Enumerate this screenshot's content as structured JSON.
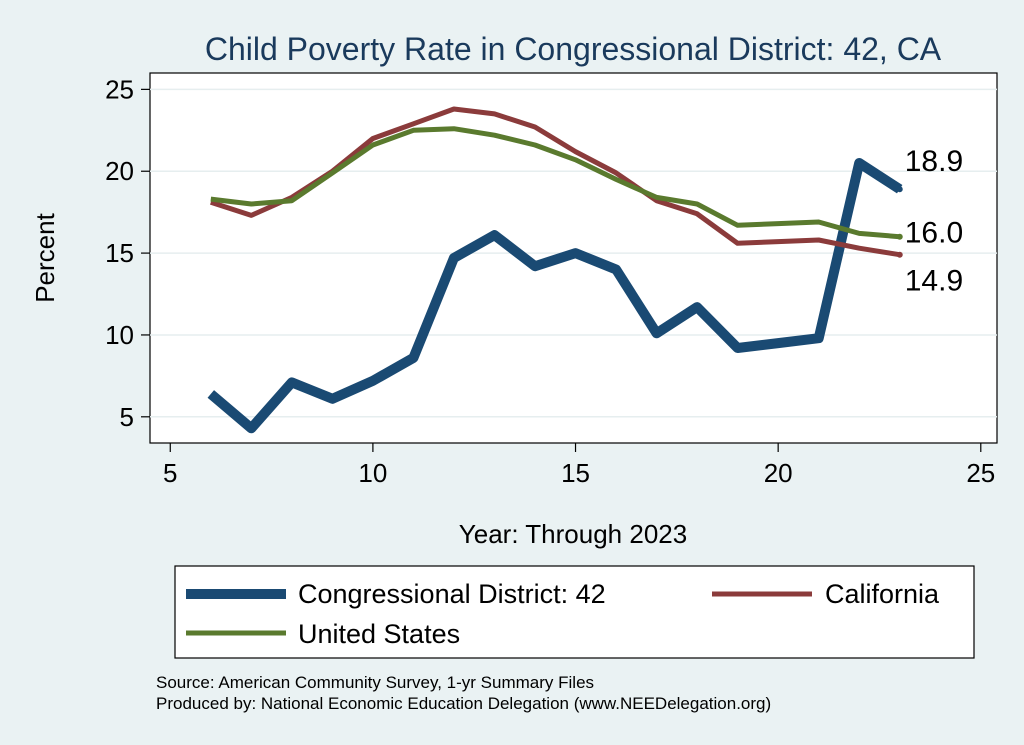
{
  "chart_data": {
    "type": "line",
    "title": "Child Poverty Rate in Congressional District:  42, CA",
    "xlabel": "Year: Through 2023",
    "ylabel": "Percent",
    "xlim": [
      4.5,
      25.4
    ],
    "ylim": [
      3.4,
      26
    ],
    "xticks": [
      5,
      10,
      15,
      20,
      25
    ],
    "yticks": [
      5,
      10,
      15,
      20,
      25
    ],
    "grid": true,
    "legend_position": "bottom",
    "series": [
      {
        "name": "Congressional District:  42",
        "color": "#1a4a73",
        "width": 10,
        "x": [
          6,
          7,
          8,
          9,
          10,
          11,
          12,
          13,
          14,
          15,
          16,
          17,
          18,
          19,
          20,
          21,
          22,
          23
        ],
        "y": [
          6.4,
          4.3,
          7.1,
          6.1,
          7.2,
          8.6,
          14.7,
          16.1,
          14.2,
          15.0,
          14.0,
          10.1,
          11.7,
          9.2,
          9.5,
          9.8,
          20.5,
          18.9
        ],
        "end_label": "18.9"
      },
      {
        "name": "California",
        "color": "#8b3b3b",
        "width": 5,
        "x": [
          6,
          7,
          8,
          9,
          10,
          11,
          12,
          13,
          14,
          15,
          16,
          17,
          18,
          19,
          20,
          21,
          22,
          23
        ],
        "y": [
          18.1,
          17.3,
          18.4,
          20.0,
          22.0,
          22.9,
          23.8,
          23.5,
          22.7,
          21.2,
          19.9,
          18.2,
          17.4,
          15.6,
          15.7,
          15.8,
          15.3,
          14.9
        ],
        "end_label": "14.9"
      },
      {
        "name": "United States",
        "color": "#5a7a2e",
        "width": 5,
        "x": [
          6,
          7,
          8,
          9,
          10,
          11,
          12,
          13,
          14,
          15,
          16,
          17,
          18,
          19,
          20,
          21,
          22,
          23
        ],
        "y": [
          18.3,
          18.0,
          18.2,
          19.9,
          21.6,
          22.5,
          22.6,
          22.2,
          21.6,
          20.7,
          19.5,
          18.4,
          18.0,
          16.7,
          16.8,
          16.9,
          16.2,
          16.0
        ],
        "end_label": "16.0"
      }
    ]
  },
  "source": {
    "line1": "Source: American Community Survey, 1-yr Summary Files",
    "line2": "Produced by: National Economic Education Delegation (www.NEEDelegation.org)"
  }
}
